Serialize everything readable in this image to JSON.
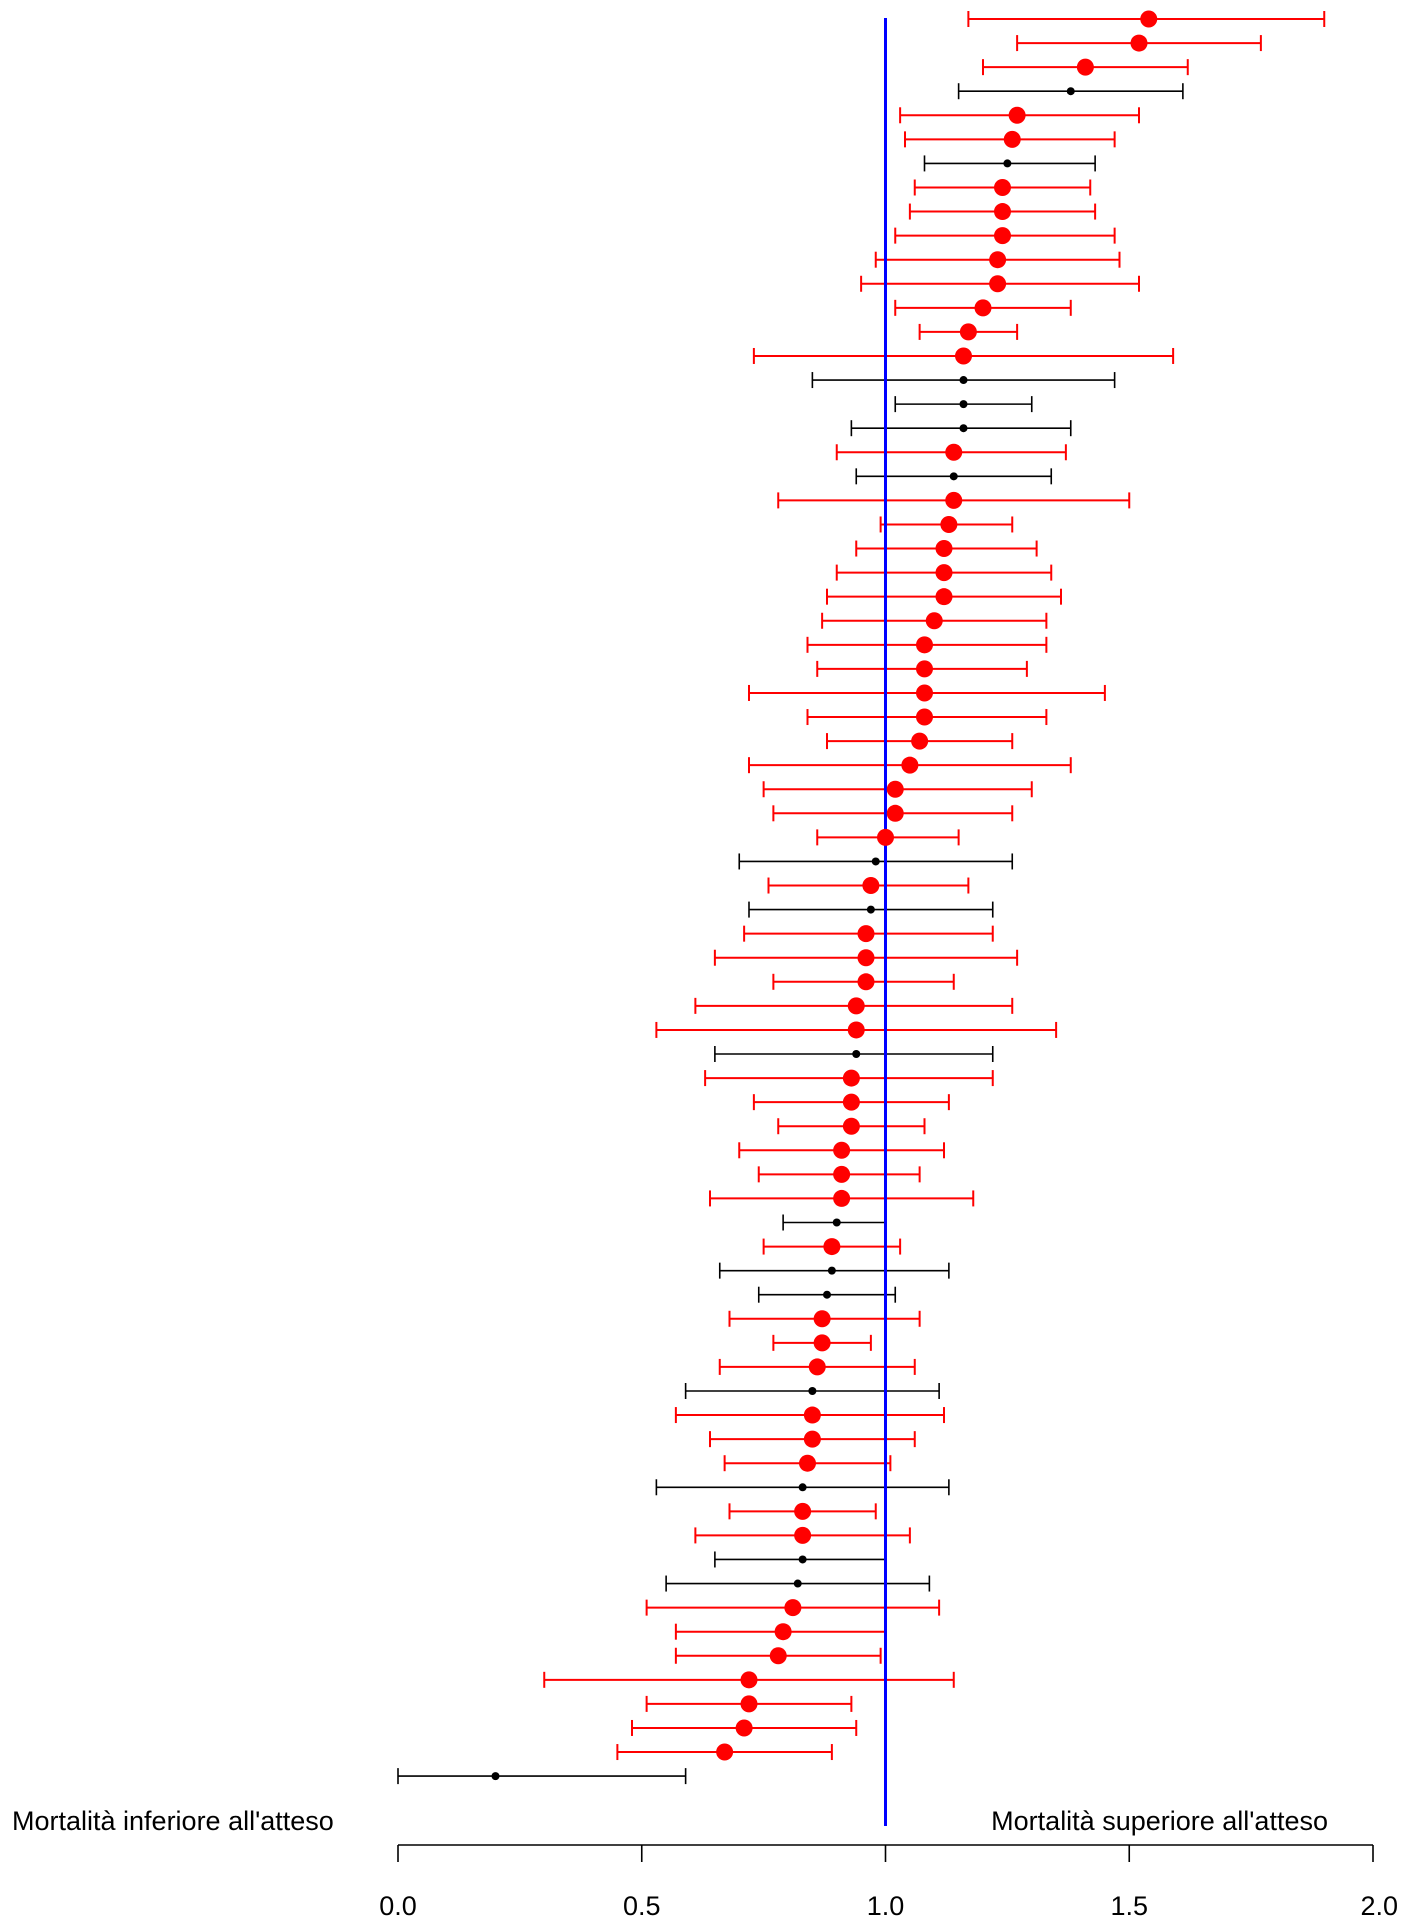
{
  "chart_data": {
    "type": "forest",
    "title": "",
    "xlabel": "",
    "ylabel": "",
    "xlim": [
      0,
      2
    ],
    "xticks": [
      0,
      0.5,
      1,
      1.5,
      2
    ],
    "xtick_labels": [
      "0.0",
      "0.5",
      "1.0",
      "1.5",
      "2.0"
    ],
    "reference_line": 1.0,
    "annotations": {
      "left": "Mortalità inferiore all'atteso",
      "right": "Mortalità superiore all'atteso"
    },
    "colors": {
      "significant": "#ff0000",
      "non_significant": "#000000",
      "reference_line": "#0000ff"
    },
    "rows": [
      {
        "est": 1.54,
        "lo": 1.17,
        "hi": 1.9,
        "sig": true
      },
      {
        "est": 1.52,
        "lo": 1.27,
        "hi": 1.77,
        "sig": true
      },
      {
        "est": 1.41,
        "lo": 1.2,
        "hi": 1.62,
        "sig": true
      },
      {
        "est": 1.38,
        "lo": 1.15,
        "hi": 1.61,
        "sig": false
      },
      {
        "est": 1.27,
        "lo": 1.03,
        "hi": 1.52,
        "sig": true
      },
      {
        "est": 1.26,
        "lo": 1.04,
        "hi": 1.47,
        "sig": true
      },
      {
        "est": 1.25,
        "lo": 1.08,
        "hi": 1.43,
        "sig": false
      },
      {
        "est": 1.24,
        "lo": 1.06,
        "hi": 1.42,
        "sig": true
      },
      {
        "est": 1.24,
        "lo": 1.05,
        "hi": 1.43,
        "sig": true
      },
      {
        "est": 1.24,
        "lo": 1.02,
        "hi": 1.47,
        "sig": true
      },
      {
        "est": 1.23,
        "lo": 0.98,
        "hi": 1.48,
        "sig": true
      },
      {
        "est": 1.23,
        "lo": 0.95,
        "hi": 1.52,
        "sig": true
      },
      {
        "est": 1.2,
        "lo": 1.02,
        "hi": 1.38,
        "sig": true
      },
      {
        "est": 1.17,
        "lo": 1.07,
        "hi": 1.27,
        "sig": true
      },
      {
        "est": 1.16,
        "lo": 0.73,
        "hi": 1.59,
        "sig": true
      },
      {
        "est": 1.16,
        "lo": 0.85,
        "hi": 1.47,
        "sig": false
      },
      {
        "est": 1.16,
        "lo": 1.02,
        "hi": 1.3,
        "sig": false
      },
      {
        "est": 1.16,
        "lo": 0.93,
        "hi": 1.38,
        "sig": false
      },
      {
        "est": 1.14,
        "lo": 0.9,
        "hi": 1.37,
        "sig": true
      },
      {
        "est": 1.14,
        "lo": 0.94,
        "hi": 1.34,
        "sig": false
      },
      {
        "est": 1.14,
        "lo": 0.78,
        "hi": 1.5,
        "sig": true
      },
      {
        "est": 1.13,
        "lo": 0.99,
        "hi": 1.26,
        "sig": true
      },
      {
        "est": 1.12,
        "lo": 0.94,
        "hi": 1.31,
        "sig": true
      },
      {
        "est": 1.12,
        "lo": 0.9,
        "hi": 1.34,
        "sig": true
      },
      {
        "est": 1.12,
        "lo": 0.88,
        "hi": 1.36,
        "sig": true
      },
      {
        "est": 1.1,
        "lo": 0.87,
        "hi": 1.33,
        "sig": true
      },
      {
        "est": 1.08,
        "lo": 0.84,
        "hi": 1.33,
        "sig": true
      },
      {
        "est": 1.08,
        "lo": 0.86,
        "hi": 1.29,
        "sig": true
      },
      {
        "est": 1.08,
        "lo": 0.72,
        "hi": 1.45,
        "sig": true
      },
      {
        "est": 1.08,
        "lo": 0.84,
        "hi": 1.33,
        "sig": true
      },
      {
        "est": 1.07,
        "lo": 0.88,
        "hi": 1.26,
        "sig": true
      },
      {
        "est": 1.05,
        "lo": 0.72,
        "hi": 1.38,
        "sig": true
      },
      {
        "est": 1.02,
        "lo": 0.75,
        "hi": 1.3,
        "sig": true
      },
      {
        "est": 1.02,
        "lo": 0.77,
        "hi": 1.26,
        "sig": true
      },
      {
        "est": 1.0,
        "lo": 0.86,
        "hi": 1.15,
        "sig": true
      },
      {
        "est": 0.98,
        "lo": 0.7,
        "hi": 1.26,
        "sig": false
      },
      {
        "est": 0.97,
        "lo": 0.76,
        "hi": 1.17,
        "sig": true
      },
      {
        "est": 0.97,
        "lo": 0.72,
        "hi": 1.22,
        "sig": false
      },
      {
        "est": 0.96,
        "lo": 0.71,
        "hi": 1.22,
        "sig": true
      },
      {
        "est": 0.96,
        "lo": 0.65,
        "hi": 1.27,
        "sig": true
      },
      {
        "est": 0.96,
        "lo": 0.77,
        "hi": 1.14,
        "sig": true
      },
      {
        "est": 0.94,
        "lo": 0.61,
        "hi": 1.26,
        "sig": true
      },
      {
        "est": 0.94,
        "lo": 0.53,
        "hi": 1.35,
        "sig": true
      },
      {
        "est": 0.94,
        "lo": 0.65,
        "hi": 1.22,
        "sig": false
      },
      {
        "est": 0.93,
        "lo": 0.63,
        "hi": 1.22,
        "sig": true
      },
      {
        "est": 0.93,
        "lo": 0.73,
        "hi": 1.13,
        "sig": true
      },
      {
        "est": 0.93,
        "lo": 0.78,
        "hi": 1.08,
        "sig": true
      },
      {
        "est": 0.91,
        "lo": 0.7,
        "hi": 1.12,
        "sig": true
      },
      {
        "est": 0.91,
        "lo": 0.74,
        "hi": 1.07,
        "sig": true
      },
      {
        "est": 0.91,
        "lo": 0.64,
        "hi": 1.18,
        "sig": true
      },
      {
        "est": 0.9,
        "lo": 0.79,
        "hi": 1.0,
        "sig": false
      },
      {
        "est": 0.89,
        "lo": 0.75,
        "hi": 1.03,
        "sig": true
      },
      {
        "est": 0.89,
        "lo": 0.66,
        "hi": 1.13,
        "sig": false
      },
      {
        "est": 0.88,
        "lo": 0.74,
        "hi": 1.02,
        "sig": false
      },
      {
        "est": 0.87,
        "lo": 0.68,
        "hi": 1.07,
        "sig": true
      },
      {
        "est": 0.87,
        "lo": 0.77,
        "hi": 0.97,
        "sig": true
      },
      {
        "est": 0.86,
        "lo": 0.66,
        "hi": 1.06,
        "sig": true
      },
      {
        "est": 0.85,
        "lo": 0.59,
        "hi": 1.11,
        "sig": false
      },
      {
        "est": 0.85,
        "lo": 0.57,
        "hi": 1.12,
        "sig": true
      },
      {
        "est": 0.85,
        "lo": 0.64,
        "hi": 1.06,
        "sig": true
      },
      {
        "est": 0.84,
        "lo": 0.67,
        "hi": 1.01,
        "sig": true
      },
      {
        "est": 0.83,
        "lo": 0.53,
        "hi": 1.13,
        "sig": false
      },
      {
        "est": 0.83,
        "lo": 0.68,
        "hi": 0.98,
        "sig": true
      },
      {
        "est": 0.83,
        "lo": 0.61,
        "hi": 1.05,
        "sig": true
      },
      {
        "est": 0.83,
        "lo": 0.65,
        "hi": 1.0,
        "sig": false
      },
      {
        "est": 0.82,
        "lo": 0.55,
        "hi": 1.09,
        "sig": false
      },
      {
        "est": 0.81,
        "lo": 0.51,
        "hi": 1.11,
        "sig": true
      },
      {
        "est": 0.79,
        "lo": 0.57,
        "hi": 1.0,
        "sig": true
      },
      {
        "est": 0.78,
        "lo": 0.57,
        "hi": 0.99,
        "sig": true
      },
      {
        "est": 0.72,
        "lo": 0.3,
        "hi": 1.14,
        "sig": true
      },
      {
        "est": 0.72,
        "lo": 0.51,
        "hi": 0.93,
        "sig": true
      },
      {
        "est": 0.71,
        "lo": 0.48,
        "hi": 0.94,
        "sig": true
      },
      {
        "est": 0.67,
        "lo": 0.45,
        "hi": 0.89,
        "sig": true
      },
      {
        "est": 0.2,
        "lo": 0.0,
        "hi": 0.59,
        "sig": false
      }
    ]
  }
}
